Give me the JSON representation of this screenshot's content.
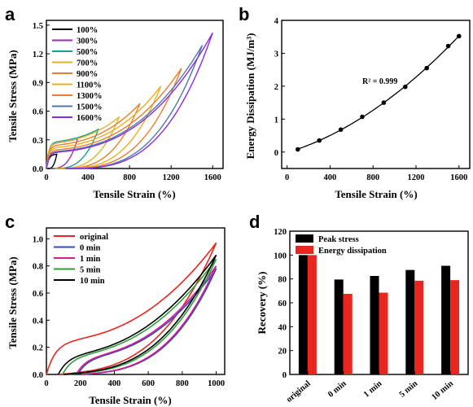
{
  "panels": [
    {
      "label": "a",
      "type": "line",
      "xlabel": "Tensile Strain (%)",
      "ylabel": "Tensile Stress (MPa)",
      "xlim": [
        0,
        1700
      ],
      "ylim": [
        0,
        1.55
      ],
      "xticks": [
        0,
        400,
        800,
        1200,
        1600
      ],
      "yticks": [
        0.0,
        0.3,
        0.6,
        0.9,
        1.2,
        1.5
      ],
      "ytick_labels": [
        "0.0",
        "0.3",
        "0.6",
        "0.9",
        "1.2",
        "1.5"
      ],
      "legend": "top-left"
    },
    {
      "label": "b",
      "type": "scatter",
      "xlabel": "Tensile Strain (%)",
      "ylabel": "Energy Dissipation (MJ/m³)",
      "xlim": [
        -50,
        1700
      ],
      "ylim": [
        -0.5,
        4
      ],
      "xticks": [
        0,
        400,
        800,
        1200,
        1600
      ],
      "yticks": [
        0,
        1,
        2,
        3,
        4
      ],
      "annotation": "R² = 0.999"
    },
    {
      "label": "c",
      "type": "line",
      "xlabel": "Tensile Strain (%)",
      "ylabel": "Tensile Stress (MPa)",
      "xlim": [
        0,
        1050
      ],
      "ylim": [
        0,
        1.08
      ],
      "xticks": [
        0,
        200,
        400,
        600,
        800,
        1000
      ],
      "yticks": [
        0.0,
        0.2,
        0.4,
        0.6,
        0.8,
        1.0
      ],
      "ytick_labels": [
        "0.0",
        "0.2",
        "0.4",
        "0.6",
        "0.8",
        "1.0"
      ],
      "legend": "top-left"
    },
    {
      "label": "d",
      "type": "bar",
      "ylabel": "Recovery (%)",
      "ylim": [
        0,
        120
      ],
      "yticks": [
        0,
        20,
        40,
        60,
        80,
        100,
        120
      ],
      "legend": "top-left"
    }
  ],
  "chart_data": [
    {
      "type": "line",
      "title": "",
      "xlabel": "Tensile Strain (%)",
      "ylabel": "Tensile Stress (MPa)",
      "series": [
        {
          "name": "100%",
          "color": "#000000",
          "max_strain": 100,
          "peak_stress": 0.15
        },
        {
          "name": "300%",
          "color": "#9b2fae",
          "max_strain": 300,
          "peak_stress": 0.31
        },
        {
          "name": "500%",
          "color": "#17a18f",
          "max_strain": 500,
          "peak_stress": 0.41
        },
        {
          "name": "700%",
          "color": "#e0b429",
          "max_strain": 700,
          "peak_stress": 0.54
        },
        {
          "name": "900%",
          "color": "#f07c28",
          "max_strain": 900,
          "peak_stress": 0.68
        },
        {
          "name": "1100%",
          "color": "#e8b11c",
          "max_strain": 1100,
          "peak_stress": 0.86
        },
        {
          "name": "1300%",
          "color": "#ee7d2f",
          "max_strain": 1300,
          "peak_stress": 1.05
        },
        {
          "name": "1500%",
          "color": "#4e7aa8",
          "max_strain": 1500,
          "peak_stress": 1.29
        },
        {
          "name": "1600%",
          "color": "#8a2be2",
          "max_strain": 1600,
          "peak_stress": 1.42
        }
      ]
    },
    {
      "type": "scatter",
      "title": "",
      "xlabel": "Tensile Strain (%)",
      "ylabel": "Energy Dissipation (MJ/m³)",
      "x": [
        100,
        300,
        500,
        700,
        900,
        1100,
        1300,
        1500,
        1600
      ],
      "y": [
        0.08,
        0.35,
        0.68,
        1.07,
        1.5,
        1.98,
        2.55,
        3.22,
        3.52
      ],
      "fit": "quadratic",
      "annotation": "R² = 0.999"
    },
    {
      "type": "line",
      "title": "",
      "xlabel": "Tensile Strain (%)",
      "ylabel": "Tensile Stress (MPa)",
      "series": [
        {
          "name": "original",
          "color": "#e8261f",
          "peak_stress": 0.97,
          "residual_strain": 0
        },
        {
          "name": "0 min",
          "color": "#3048c8",
          "peak_stress": 0.78,
          "residual_strain": 185
        },
        {
          "name": "1 min",
          "color": "#d81b8f",
          "peak_stress": 0.8,
          "residual_strain": 175
        },
        {
          "name": "5 min",
          "color": "#2e9e3a",
          "peak_stress": 0.85,
          "residual_strain": 95
        },
        {
          "name": "10 min",
          "color": "#000000",
          "peak_stress": 0.88,
          "residual_strain": 70
        }
      ]
    },
    {
      "type": "bar",
      "title": "",
      "ylabel": "Recovery (%)",
      "categories": [
        "original",
        "0 min",
        "1 min",
        "5 min",
        "10 min"
      ],
      "series": [
        {
          "name": "Peak stress",
          "color": "#000000",
          "values": [
            100,
            79.5,
            82.5,
            87.5,
            91
          ]
        },
        {
          "name": "Energy dissipation",
          "color": "#e8261f",
          "values": [
            100,
            67.5,
            68.5,
            78.5,
            79
          ]
        }
      ]
    }
  ]
}
